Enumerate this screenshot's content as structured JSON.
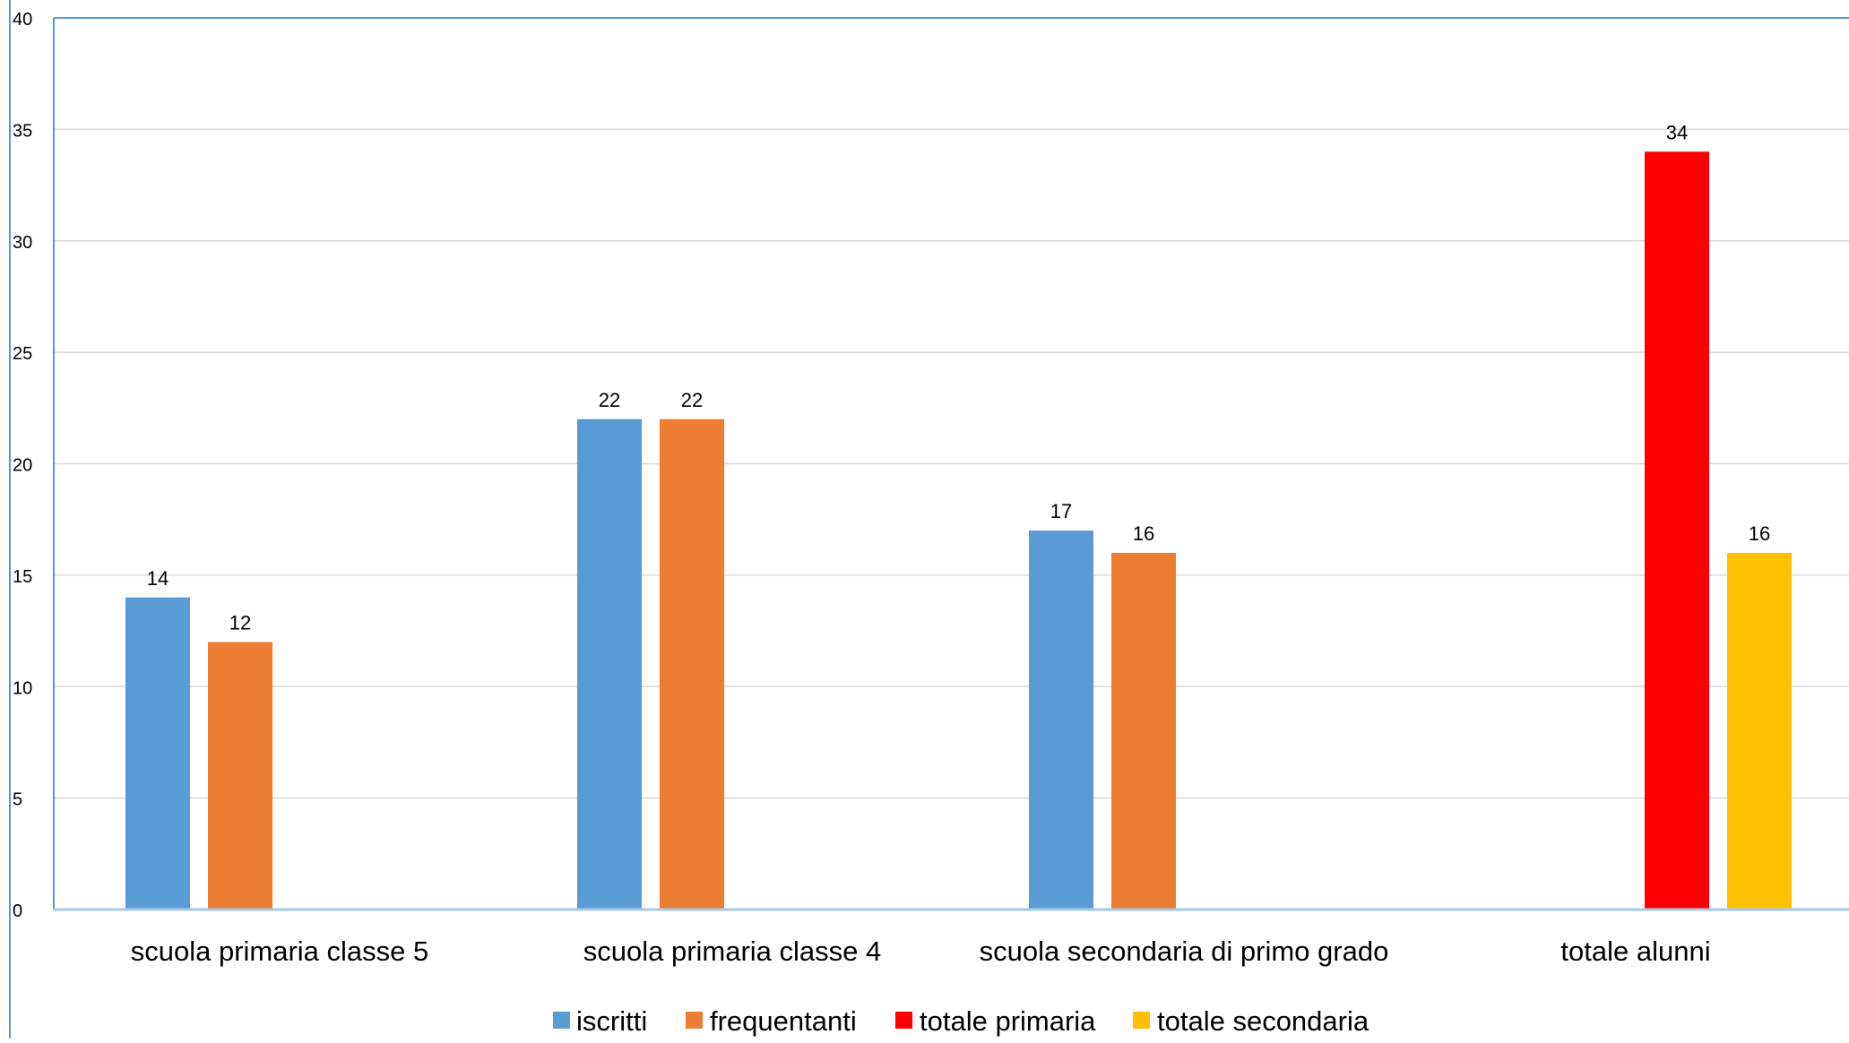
{
  "chart_data": {
    "type": "bar",
    "categories": [
      "scuola primaria classe 5",
      "scuola primaria classe 4",
      "scuola secondaria di primo grado",
      "totale alunni"
    ],
    "series": [
      {
        "name": "iscritti",
        "color": "#5B9BD5",
        "values": [
          14,
          22,
          17,
          null
        ]
      },
      {
        "name": "frequentanti",
        "color": "#ED7D31",
        "values": [
          12,
          22,
          16,
          null
        ]
      },
      {
        "name": "totale primaria",
        "color": "#FF0000",
        "values": [
          null,
          null,
          null,
          34
        ]
      },
      {
        "name": "totale secondaria",
        "color": "#FFC000",
        "values": [
          null,
          null,
          null,
          16
        ]
      }
    ],
    "ylim": [
      0,
      40
    ],
    "yticks": [
      0,
      5,
      10,
      15,
      20,
      25,
      30,
      35,
      40
    ],
    "grid": true,
    "data_labels": true,
    "legend_position": "bottom",
    "title": "",
    "xlabel": "",
    "ylabel": ""
  }
}
